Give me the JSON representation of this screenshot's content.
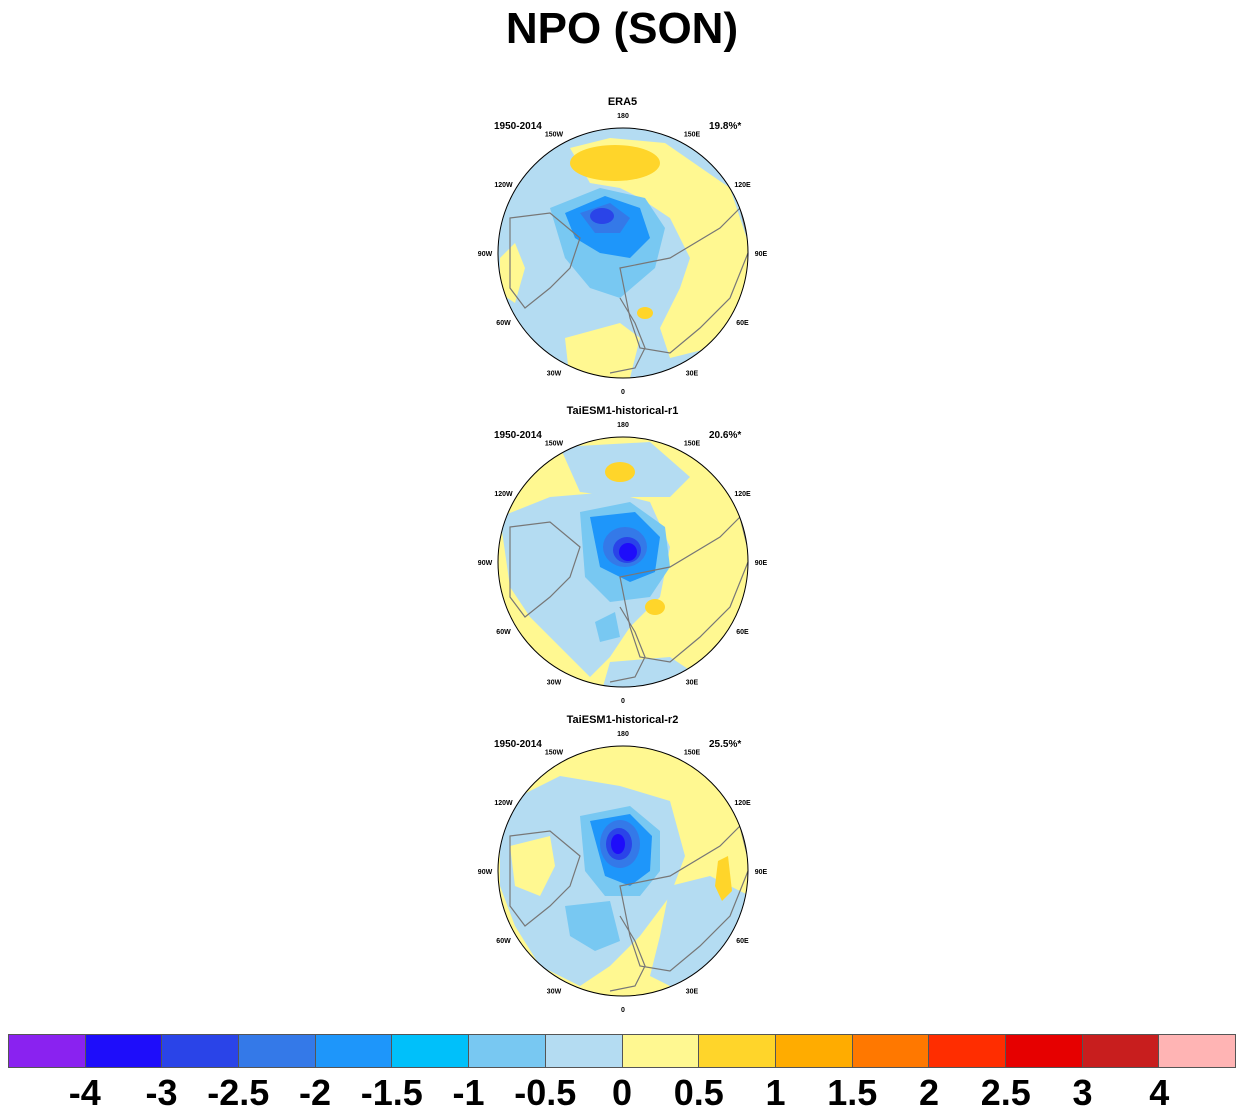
{
  "title": "NPO (SON)",
  "panels": [
    {
      "title": "ERA5",
      "period": "1950-2014",
      "variance": "19.8%*"
    },
    {
      "title": "TaiESM1-historical-r1",
      "period": "1950-2014",
      "variance": "20.6%*"
    },
    {
      "title": "TaiESM1-historical-r2",
      "period": "1950-2014",
      "variance": "25.5%*"
    }
  ],
  "longitude_labels": [
    "180",
    "150E",
    "120E",
    "90E",
    "60E",
    "30E",
    "0",
    "30W",
    "60W",
    "90W",
    "120W",
    "150W"
  ],
  "colorbar": {
    "colors": [
      "#8a22f0",
      "#1e0dfa",
      "#2a44e8",
      "#3479e8",
      "#1e96fa",
      "#00c0fa",
      "#78c8f2",
      "#b4dcf2",
      "#fff891",
      "#ffd52a",
      "#ffac00",
      "#ff7800",
      "#ff2d00",
      "#e60000",
      "#c81e1e",
      "#ffb4b4"
    ],
    "tick_labels": [
      "-4",
      "-3",
      "-2.5",
      "-2",
      "-1.5",
      "-1",
      "-0.5",
      "0",
      "0.5",
      "1",
      "1.5",
      "2",
      "2.5",
      "3",
      "4"
    ]
  }
}
